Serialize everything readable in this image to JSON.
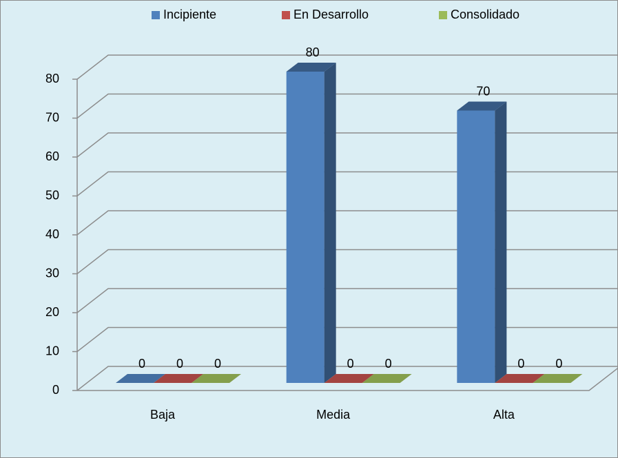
{
  "chart_data": {
    "type": "bar3d",
    "categories": [
      "Baja",
      "Media",
      "Alta"
    ],
    "series": [
      {
        "name": "Incipiente",
        "color": "#4f81bd",
        "values": [
          0,
          80,
          70
        ]
      },
      {
        "name": "En Desarrollo",
        "color": "#c0504d",
        "values": [
          0,
          0,
          0
        ]
      },
      {
        "name": "Consolidado",
        "color": "#9bbb59",
        "values": [
          0,
          0,
          0
        ]
      }
    ],
    "ylim": [
      0,
      80
    ],
    "yticks": [
      0,
      10,
      20,
      30,
      40,
      50,
      60,
      70,
      80
    ],
    "grid": true,
    "legend": "top"
  }
}
